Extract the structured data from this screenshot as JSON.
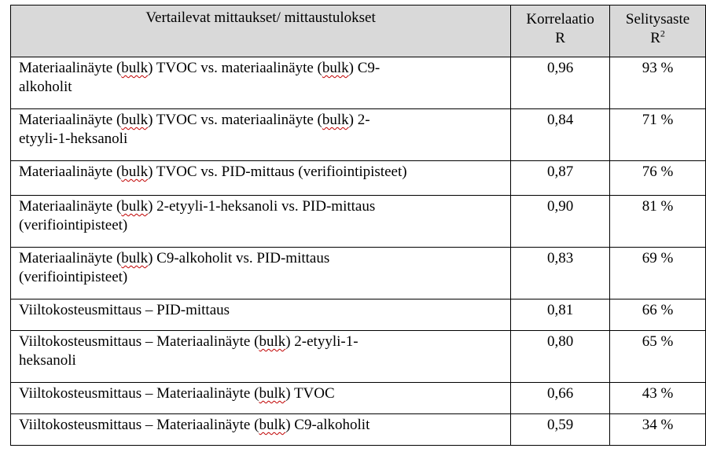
{
  "table": {
    "headers": {
      "measurement": "Vertailevat mittaukset/ mittaustulokset",
      "correlation_line1": "Korrelaatio",
      "correlation_line2": "R",
      "rsq_line1": "Selitysaste",
      "rsq_line2_base": "R",
      "rsq_line2_sup": "2"
    },
    "rows": [
      {
        "parts": [
          {
            "text": "Materiaalinäyte (",
            "spell": false
          },
          {
            "text": "bulk",
            "spell": true
          },
          {
            "text": ") TVOC vs. materiaalinäyte (",
            "spell": false
          },
          {
            "text": "bulk",
            "spell": true
          },
          {
            "text": ") C9-",
            "spell": false
          },
          {
            "br": true
          },
          {
            "text": "alkoholit",
            "spell": false
          }
        ],
        "r": "0,96",
        "r2": "93 %"
      },
      {
        "parts": [
          {
            "text": "Materiaalinäyte (",
            "spell": false
          },
          {
            "text": "bulk",
            "spell": true
          },
          {
            "text": ") TVOC vs. materiaalinäyte (",
            "spell": false
          },
          {
            "text": "bulk",
            "spell": true
          },
          {
            "text": ") 2-",
            "spell": false
          },
          {
            "br": true
          },
          {
            "text": "etyyli-1-heksanoli",
            "spell": false
          }
        ],
        "r": "0,84",
        "r2": "71 %"
      },
      {
        "parts": [
          {
            "text": "Materiaalinäyte (",
            "spell": false
          },
          {
            "text": "bulk",
            "spell": true
          },
          {
            "text": ") TVOC vs. PID-mittaus (verifiointipisteet)",
            "spell": false
          }
        ],
        "r": "0,87",
        "r2": "76 %"
      },
      {
        "parts": [
          {
            "text": "Materiaalinäyte (",
            "spell": false
          },
          {
            "text": "bulk",
            "spell": true
          },
          {
            "text": ") 2-etyyli-1-heksanoli vs. PID-mittaus",
            "spell": false
          },
          {
            "br": true
          },
          {
            "text": "(verifiointipisteet)",
            "spell": false
          }
        ],
        "r": "0,90",
        "r2": "81 %"
      },
      {
        "parts": [
          {
            "text": "Materiaalinäyte (",
            "spell": false
          },
          {
            "text": "bulk",
            "spell": true
          },
          {
            "text": ") C9-alkoholit vs. PID-mittaus",
            "spell": false
          },
          {
            "br": true
          },
          {
            "text": "(verifiointipisteet)",
            "spell": false
          }
        ],
        "r": "0,83",
        "r2": "69 %"
      },
      {
        "parts": [
          {
            "text": "Viiltokosteusmittaus – PID-mittaus",
            "spell": false
          }
        ],
        "r": "0,81",
        "r2": "66 %"
      },
      {
        "parts": [
          {
            "text": "Viiltokosteusmittaus – Materiaalinäyte (",
            "spell": false
          },
          {
            "text": "bulk",
            "spell": true
          },
          {
            "text": ") 2-etyyli-1-",
            "spell": false
          },
          {
            "br": true
          },
          {
            "text": "heksanoli",
            "spell": false
          }
        ],
        "r": "0,80",
        "r2": "65 %"
      },
      {
        "parts": [
          {
            "text": "Viiltokosteusmittaus – Materiaalinäyte (",
            "spell": false
          },
          {
            "text": "bulk",
            "spell": true
          },
          {
            "text": ") TVOC",
            "spell": false
          }
        ],
        "r": "0,66",
        "r2": "43 %"
      },
      {
        "parts": [
          {
            "text": "Viiltokosteusmittaus – Materiaalinäyte (",
            "spell": false
          },
          {
            "text": "bulk",
            "spell": true
          },
          {
            "text": ") C9-alkoholit",
            "spell": false
          }
        ],
        "r": "0,59",
        "r2": "34 %"
      }
    ]
  }
}
